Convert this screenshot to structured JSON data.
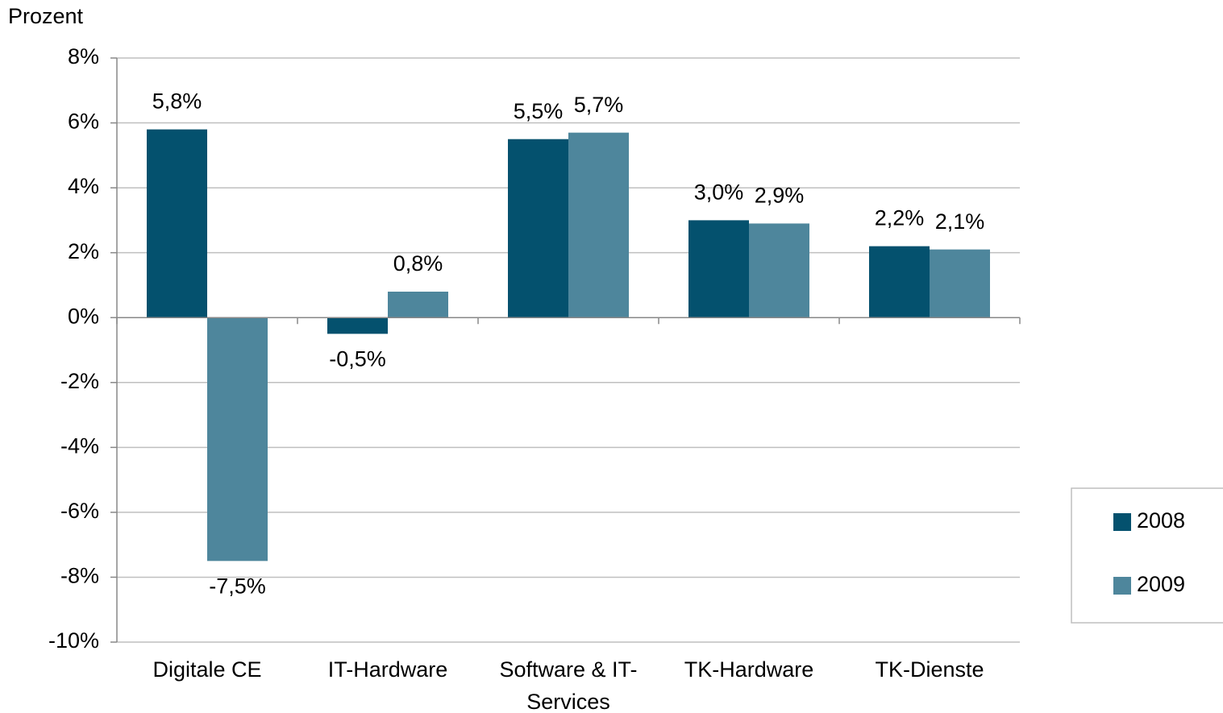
{
  "chart_data": {
    "type": "bar",
    "y_label": "Prozent",
    "categories": [
      "Digitale CE",
      "IT-Hardware",
      "Software & IT-Services",
      "TK-Hardware",
      "TK-Dienste"
    ],
    "series": [
      {
        "name": "2008",
        "color": "#04516e",
        "values": [
          5.8,
          -0.5,
          5.5,
          3.0,
          2.2
        ],
        "value_labels": [
          "5,8%",
          "-0,5%",
          "5,5%",
          "3,0%",
          "2,2%"
        ]
      },
      {
        "name": "2009",
        "color": "#4e869c",
        "values": [
          -7.5,
          0.8,
          5.7,
          2.9,
          2.1
        ],
        "value_labels": [
          "-7,5%",
          "0,8%",
          "5,7%",
          "2,9%",
          "2,1%"
        ]
      }
    ],
    "ylim": [
      -10,
      8
    ],
    "yticks": [
      {
        "value": -10,
        "label": "-10%"
      },
      {
        "value": -8,
        "label": "-8%"
      },
      {
        "value": -6,
        "label": "-6%"
      },
      {
        "value": -4,
        "label": "-4%"
      },
      {
        "value": -2,
        "label": "-2%"
      },
      {
        "value": 0,
        "label": "0%"
      },
      {
        "value": 2,
        "label": "2%"
      },
      {
        "value": 4,
        "label": "4%"
      },
      {
        "value": 6,
        "label": "6%"
      },
      {
        "value": 8,
        "label": "8%"
      }
    ],
    "grid": true,
    "legend": "right"
  }
}
